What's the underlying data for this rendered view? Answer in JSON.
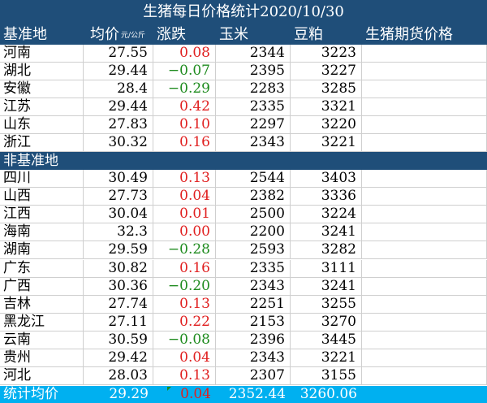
{
  "title": "生猪每日价格统计2020/10/30",
  "headers": {
    "region": "基准地",
    "price": "均价",
    "price_unit": "元/公斤",
    "change": "涨跌",
    "corn": "玉米",
    "soymeal": "豆粕",
    "futures": "生猪期货价格"
  },
  "section_label": "非基准地",
  "benchmark_rows": [
    {
      "region": "河南",
      "price": "27.55",
      "change": "0.08",
      "corn": "2344",
      "soymeal": "3223"
    },
    {
      "region": "湖北",
      "price": "29.44",
      "change": "-0.07",
      "corn": "2395",
      "soymeal": "3227"
    },
    {
      "region": "安徽",
      "price": "28.4",
      "change": "-0.29",
      "corn": "2283",
      "soymeal": "3285"
    },
    {
      "region": "江苏",
      "price": "29.44",
      "change": "0.42",
      "corn": "2335",
      "soymeal": "3321"
    },
    {
      "region": "山东",
      "price": "27.83",
      "change": "0.10",
      "corn": "2297",
      "soymeal": "3220"
    },
    {
      "region": "浙江",
      "price": "30.32",
      "change": "0.16",
      "corn": "2343",
      "soymeal": "3221"
    }
  ],
  "non_benchmark_rows": [
    {
      "region": "四川",
      "price": "30.49",
      "change": "0.13",
      "corn": "2544",
      "soymeal": "3403"
    },
    {
      "region": "山西",
      "price": "27.73",
      "change": "0.04",
      "corn": "2382",
      "soymeal": "3336"
    },
    {
      "region": "江西",
      "price": "30.04",
      "change": "0.01",
      "corn": "2500",
      "soymeal": "3224"
    },
    {
      "region": "海南",
      "price": "32.3",
      "change": "0.00",
      "corn": "2200",
      "soymeal": "3241"
    },
    {
      "region": "湖南",
      "price": "29.59",
      "change": "-0.28",
      "corn": "2593",
      "soymeal": "3282"
    },
    {
      "region": "广东",
      "price": "30.82",
      "change": "0.16",
      "corn": "2335",
      "soymeal": "3111"
    },
    {
      "region": "广西",
      "price": "30.36",
      "change": "-0.20",
      "corn": "2343",
      "soymeal": "3241"
    },
    {
      "region": "吉林",
      "price": "27.74",
      "change": "0.13",
      "corn": "2251",
      "soymeal": "3255"
    },
    {
      "region": "黑龙江",
      "price": "27.11",
      "change": "0.22",
      "corn": "2153",
      "soymeal": "3270"
    },
    {
      "region": "云南",
      "price": "30.59",
      "change": "-0.08",
      "corn": "2396",
      "soymeal": "3445"
    },
    {
      "region": "贵州",
      "price": "29.42",
      "change": "0.04",
      "corn": "2343",
      "soymeal": "3221"
    },
    {
      "region": "河北",
      "price": "28.03",
      "change": "0.13",
      "corn": "2307",
      "soymeal": "3155"
    }
  ],
  "summary": {
    "label": "统计均价",
    "price": "29.29",
    "change": "0.04",
    "corn": "2352.44",
    "soymeal": "3260.06"
  },
  "colors": {
    "header_bg": "#1f4e79",
    "summary_bg": "#00b0f0",
    "up": "#e02020",
    "down": "#1e8b1e",
    "grid": "#cfcfcf"
  }
}
